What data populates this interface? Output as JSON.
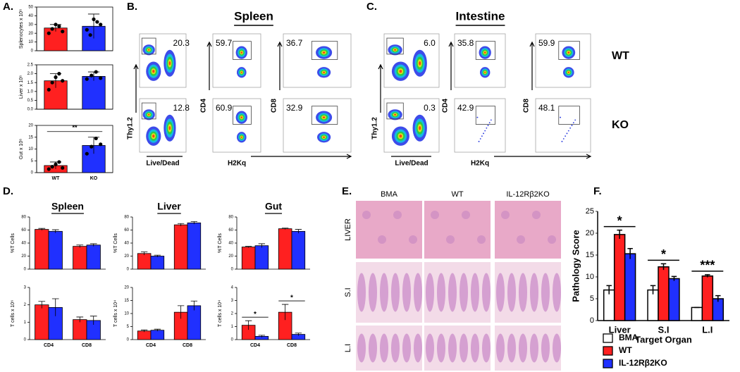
{
  "panel_labels": [
    "A.",
    "B.",
    "C.",
    "D.",
    "E.",
    "F."
  ],
  "chart_data": [
    {
      "type": "bar",
      "ylabel": "Splenocytes x 10⁶",
      "categories": [
        null,
        null
      ],
      "values": [
        26,
        28
      ],
      "errors": [
        4,
        14
      ],
      "colors": [
        "#ff2020",
        "#2030ff"
      ],
      "points": [
        [
          20,
          25,
          30,
          28,
          22
        ],
        [
          24,
          18,
          36,
          33,
          30
        ]
      ],
      "ylim": [
        0,
        50
      ],
      "yticks": [
        0,
        10,
        20,
        30,
        40,
        50
      ]
    },
    {
      "type": "bar",
      "ylabel": "Liver x 10⁶",
      "categories": [
        null,
        null
      ],
      "values": [
        1.6,
        1.85
      ],
      "errors": [
        0.4,
        0.25
      ],
      "colors": [
        "#ff2020",
        "#2030ff"
      ],
      "points": [
        [
          1.1,
          1.5,
          1.8,
          2.0,
          1.6
        ],
        [
          1.7,
          1.9,
          2.1,
          1.75
        ]
      ],
      "ylim": [
        0,
        2.5
      ],
      "yticks": [
        {
          "value": 0,
          "label": "0.0"
        },
        0.5,
        {
          "value": 1,
          "label": "1.0"
        },
        1.5,
        {
          "value": 2,
          "label": "2.0"
        },
        2.5
      ]
    },
    {
      "type": "bar",
      "ylabel": "Gut x 10⁶",
      "categories": [
        "WT",
        "KO"
      ],
      "values": [
        3,
        11.5
      ],
      "errors": [
        1.5,
        3.5
      ],
      "colors": [
        "#ff2020",
        "#2030ff"
      ],
      "points": [
        [
          1.5,
          2.5,
          3.5,
          4.5,
          2
        ],
        [
          8,
          11,
          14.5,
          12
        ]
      ],
      "significance": "**",
      "ylim": [
        0,
        20
      ],
      "yticks": [
        0,
        5,
        10,
        15,
        20
      ]
    },
    {
      "type": "bar",
      "title": "Spleen",
      "ylabel": "%T Cells",
      "categories": [
        null,
        null
      ],
      "series": [
        {
          "color": "#ff2020",
          "values": [
            61,
            35
          ],
          "errors": [
            1.5,
            2
          ]
        },
        {
          "color": "#2030ff",
          "values": [
            58,
            37
          ],
          "errors": [
            2.5,
            2
          ]
        }
      ],
      "ylim": [
        0,
        80
      ],
      "yticks": [
        0,
        20,
        40,
        60,
        80
      ]
    },
    {
      "type": "bar",
      "title": "Liver",
      "ylabel": "%T Cells",
      "categories": [
        null,
        null
      ],
      "series": [
        {
          "color": "#ff2020",
          "values": [
            24,
            68
          ],
          "errors": [
            2.5,
            2
          ]
        },
        {
          "color": "#2030ff",
          "values": [
            20,
            71
          ],
          "errors": [
            1.5,
            2
          ]
        }
      ],
      "ylim": [
        0,
        80
      ],
      "yticks": [
        0,
        20,
        40,
        60,
        80
      ]
    },
    {
      "type": "bar",
      "title": "Gut",
      "ylabel": "%T Cells",
      "categories": [
        null,
        null
      ],
      "series": [
        {
          "color": "#ff2020",
          "values": [
            34,
            62
          ],
          "errors": [
            1,
            1
          ]
        },
        {
          "color": "#2030ff",
          "values": [
            36,
            58
          ],
          "errors": [
            3,
            3
          ]
        }
      ],
      "ylim": [
        0,
        80
      ],
      "yticks": [
        0,
        20,
        40,
        60,
        80
      ]
    },
    {
      "type": "bar",
      "ylabel": "T cells x 10⁶",
      "categories": [
        "CD4",
        "CD8"
      ],
      "series": [
        {
          "color": "#ff2020",
          "values": [
            2.0,
            1.15
          ],
          "errors": [
            0.2,
            0.15
          ]
        },
        {
          "color": "#2030ff",
          "values": [
            1.85,
            1.1
          ],
          "errors": [
            0.5,
            0.25
          ]
        }
      ],
      "ylim": [
        0,
        3
      ],
      "yticks": [
        0,
        1,
        2,
        3
      ]
    },
    {
      "type": "bar",
      "ylabel": "T cells x 10⁴",
      "categories": [
        "CD4",
        "CD8"
      ],
      "series": [
        {
          "color": "#ff2020",
          "values": [
            3.3,
            10.5
          ],
          "errors": [
            0.4,
            2.5
          ]
        },
        {
          "color": "#2030ff",
          "values": [
            3.6,
            13
          ],
          "errors": [
            0.4,
            1.8
          ]
        }
      ],
      "ylim": [
        0,
        20
      ],
      "yticks": [
        0,
        5,
        10,
        15,
        20
      ]
    },
    {
      "type": "bar",
      "ylabel": "T cells x 10⁴",
      "categories": [
        "CD4",
        "CD8"
      ],
      "series": [
        {
          "color": "#ff2020",
          "values": [
            1.1,
            2.1
          ],
          "errors": [
            0.35,
            0.6
          ]
        },
        {
          "color": "#2030ff",
          "values": [
            0.25,
            0.4
          ],
          "errors": [
            0.08,
            0.1
          ]
        }
      ],
      "significance": [
        "*",
        "*"
      ],
      "ylim": [
        0,
        4
      ],
      "yticks": [
        0,
        1,
        2,
        3,
        4
      ]
    },
    {
      "type": "bar",
      "ylabel": "Pathology Score",
      "xlabel": "Target Organ",
      "categories": [
        "Liver",
        "S.I",
        "L.I"
      ],
      "series": [
        {
          "name": "BMA",
          "color": "#ffffff",
          "values": [
            7,
            7,
            3
          ],
          "errors": [
            1,
            1,
            0
          ]
        },
        {
          "name": "WT",
          "color": "#ff2020",
          "values": [
            19.7,
            12.3,
            10.2
          ],
          "errors": [
            1,
            0.7,
            0.3
          ]
        },
        {
          "name": "IL-12Rβ2KO",
          "color": "#2030ff",
          "values": [
            15.3,
            9.6,
            5
          ],
          "errors": [
            1.2,
            0.5,
            0.7
          ]
        }
      ],
      "significance": [
        "*",
        "*",
        "***"
      ],
      "ylim": [
        0,
        25
      ],
      "yticks": [
        0,
        5,
        10,
        15,
        20,
        25
      ]
    }
  ],
  "flow": [
    {
      "title": "Spleen",
      "x_labels": [
        "Live/Dead",
        "H2Kq"
      ],
      "y_labels": [
        "Thy1.2",
        "CD4",
        "CD8"
      ],
      "gates": [
        [
          "20.3",
          "59.7",
          "36.7"
        ],
        [
          "12.8",
          "60.9",
          "32.9"
        ]
      ]
    },
    {
      "title": "Intestine",
      "x_labels": [
        "Live/Dead",
        "H2Kq"
      ],
      "y_labels": [
        "Thy1.2",
        "CD4",
        "CD8"
      ],
      "row_labels": [
        "WT",
        "KO"
      ],
      "gates": [
        [
          "6.0",
          "35.8",
          "59.9"
        ],
        [
          "0.3",
          "42.9",
          "48.1"
        ]
      ]
    }
  ],
  "histology": {
    "columns": [
      "BMA",
      "WT",
      "IL-12Rβ2KO"
    ],
    "rows": [
      "LIVER",
      "S.I",
      "L.I"
    ]
  }
}
